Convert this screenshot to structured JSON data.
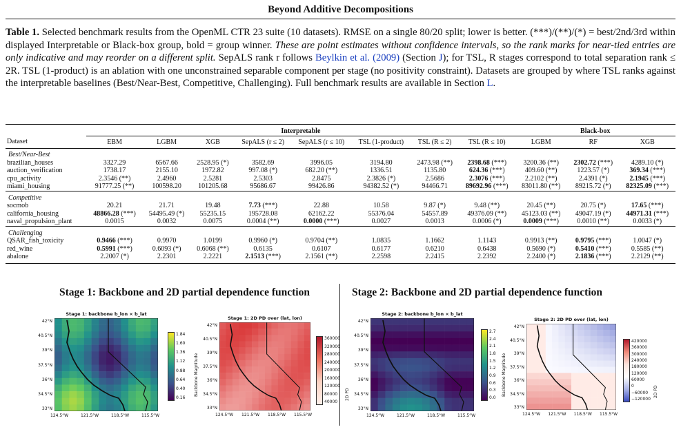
{
  "header": {
    "title": "Beyond Additive Decompositions"
  },
  "caption": {
    "label": "Table 1.",
    "text1": " Selected benchmark results from the OpenML CTR 23 suite (10 datasets). RMSE on a single 80/20 split; lower is better. (***)/(**)/(*) = best/2nd/3rd within displayed Interpretable or Black-box group, bold = group winner. ",
    "italic": "These are point estimates without confidence intervals, so the rank marks for near-tied entries are only indicative and may reorder on a different split.",
    "text2": " SepALS rank r follows ",
    "cite": "Beylkin et al. (2009)",
    "text3": " (Section ",
    "sec_j": "J",
    "text4": "); for TSL, R stages correspond to total separation rank ≤ 2R. TSL (1-product) is an ablation with one unconstrained separable component per stage (no positivity constraint). Datasets are grouped by where TSL ranks against the interpretable baselines (Best/Near-Best, Competitive, Challenging). Full benchmark results are available in Section ",
    "sec_l": "L",
    "text5": "."
  },
  "table": {
    "group_interpretable": "Interpretable",
    "group_blackbox": "Black-box",
    "columns": [
      "Dataset",
      "EBM",
      "LGBM",
      "XGB",
      "SepALS (r ≤ 2)",
      "SepALS (r ≤ 10)",
      "TSL (1-product)",
      "TSL (R ≤ 2)",
      "TSL (R ≤ 10)",
      "LGBM",
      "RF",
      "XGB"
    ],
    "sections": [
      {
        "name": "Best/Near-Best",
        "rows": [
          [
            "brazilian_houses",
            "3327.29",
            "6567.66",
            "2528.95 (*)",
            "3582.69",
            "3996.05",
            "3194.80",
            "2473.98 (**)",
            "2398.68 (***)",
            "3200.36 (**)",
            "2302.72 (***)",
            "4289.10 (*)"
          ],
          [
            "auction_verification",
            "1738.17",
            "2155.10",
            "1972.82",
            "997.08 (*)",
            "682.20 (**)",
            "1336.51",
            "1135.80",
            "624.36 (***)",
            "409.60 (**)",
            "1223.57 (*)",
            "369.34 (***)"
          ],
          [
            "cpu_activity",
            "2.3546 (**)",
            "2.4960",
            "2.5281",
            "2.5303",
            "2.8475",
            "2.3826 (*)",
            "2.5686",
            "2.3076 (***)",
            "2.2102 (**)",
            "2.4391 (*)",
            "2.1945 (***)"
          ],
          [
            "miami_housing",
            "91777.25 (**)",
            "100598.20",
            "101205.68",
            "95686.67",
            "99426.86",
            "94382.52 (*)",
            "94466.71",
            "89692.96 (***)",
            "83011.80 (**)",
            "89215.72 (*)",
            "82325.09 (***)"
          ]
        ]
      },
      {
        "name": "Competitive",
        "rows": [
          [
            "socmob",
            "20.21",
            "21.71",
            "19.48",
            "7.73 (***)",
            "22.88",
            "10.58",
            "9.87 (*)",
            "9.48 (**)",
            "20.45 (**)",
            "20.75 (*)",
            "17.65 (***)"
          ],
          [
            "california_housing",
            "48866.28 (***)",
            "54495.49 (*)",
            "55235.15",
            "195728.08",
            "62162.22",
            "55376.04",
            "54557.89",
            "49376.09 (**)",
            "45123.03 (**)",
            "49047.19 (*)",
            "44971.31 (***)"
          ],
          [
            "naval_propulsion_plant",
            "0.0015",
            "0.0032",
            "0.0075",
            "0.0004 (**)",
            "0.0000 (***)",
            "0.0027",
            "0.0013",
            "0.0006 (*)",
            "0.0009 (***)",
            "0.0010 (**)",
            "0.0033 (*)"
          ]
        ]
      },
      {
        "name": "Challenging",
        "rows": [
          [
            "QSAR_fish_toxicity",
            "0.9466 (***)",
            "0.9970",
            "1.0199",
            "0.9960 (*)",
            "0.9704 (**)",
            "1.0835",
            "1.1662",
            "1.1143",
            "0.9913 (**)",
            "0.9795 (***)",
            "1.0047 (*)"
          ],
          [
            "red_wine",
            "0.5991 (***)",
            "0.6093 (*)",
            "0.6068 (**)",
            "0.6135",
            "0.6107",
            "0.6177",
            "0.6210",
            "0.6438",
            "0.5690 (*)",
            "0.5410 (***)",
            "0.5585 (**)"
          ],
          [
            "abalone",
            "2.2007 (*)",
            "2.2301",
            "2.2221",
            "2.1513 (***)",
            "2.1561 (**)",
            "2.2598",
            "2.2415",
            "2.2392",
            "2.2400 (*)",
            "2.1836 (***)",
            "2.2129 (**)"
          ]
        ]
      }
    ],
    "bold_cells": [
      "0-0-8",
      "0-0-10",
      "0-1-8",
      "0-1-11",
      "0-2-8",
      "0-2-11",
      "0-3-8",
      "0-3-11",
      "1-0-4",
      "1-0-11",
      "1-1-1",
      "1-1-11",
      "1-2-5",
      "1-2-9",
      "2-0-1",
      "2-0-10",
      "2-1-1",
      "2-1-10",
      "2-2-4",
      "2-2-10"
    ]
  },
  "figures": {
    "stage1_title": "Stage 1: Backbone and 2D partial dependence function",
    "stage2_title": "Stage 2: Backbone and 2D partial dependence function",
    "p1_title": "Stage 1: backbone b_lon × b_lat",
    "p2_title": "Stage 1: 2D PD over (lat, lon)",
    "p3_title": "Stage 2: backbone b_lon × b_lat",
    "p4_title": "Stage 2: 2D PD over (lat, lon)",
    "lat_ticks": [
      "42°N",
      "40.5°N",
      "39°N",
      "37.5°N",
      "36°N",
      "34.5°N",
      "33°N"
    ],
    "lon_ticks": [
      "124.5°W",
      "121.5°W",
      "118.5°W",
      "115.5°W"
    ],
    "cb1_ticks": [
      "1.84",
      "1.60",
      "1.36",
      "1.12",
      "0.88",
      "0.64",
      "0.40",
      "0.16"
    ],
    "cb1_label": "Backbone Magnitude",
    "cb2_ticks": [
      "360000",
      "320000",
      "280000",
      "240000",
      "200000",
      "160000",
      "120000",
      "80000",
      "40000"
    ],
    "cb2_label": "2D PD",
    "cb3_ticks": [
      "2.7",
      "2.4",
      "2.1",
      "1.8",
      "1.5",
      "1.2",
      "0.9",
      "0.6",
      "0.3",
      "0.0"
    ],
    "cb3_label": "Backbone Magnitude",
    "cb4_ticks": [
      "420000",
      "360000",
      "300000",
      "240000",
      "180000",
      "120000",
      "60000",
      "0",
      "−60000",
      "−120000"
    ],
    "cb4_label": "2D PD",
    "colors": {
      "viridis_low": "#440154",
      "viridis_mid": "#21918c",
      "viridis_high": "#fde725",
      "red": "#d62728",
      "blue": "#3b4cc0"
    }
  }
}
